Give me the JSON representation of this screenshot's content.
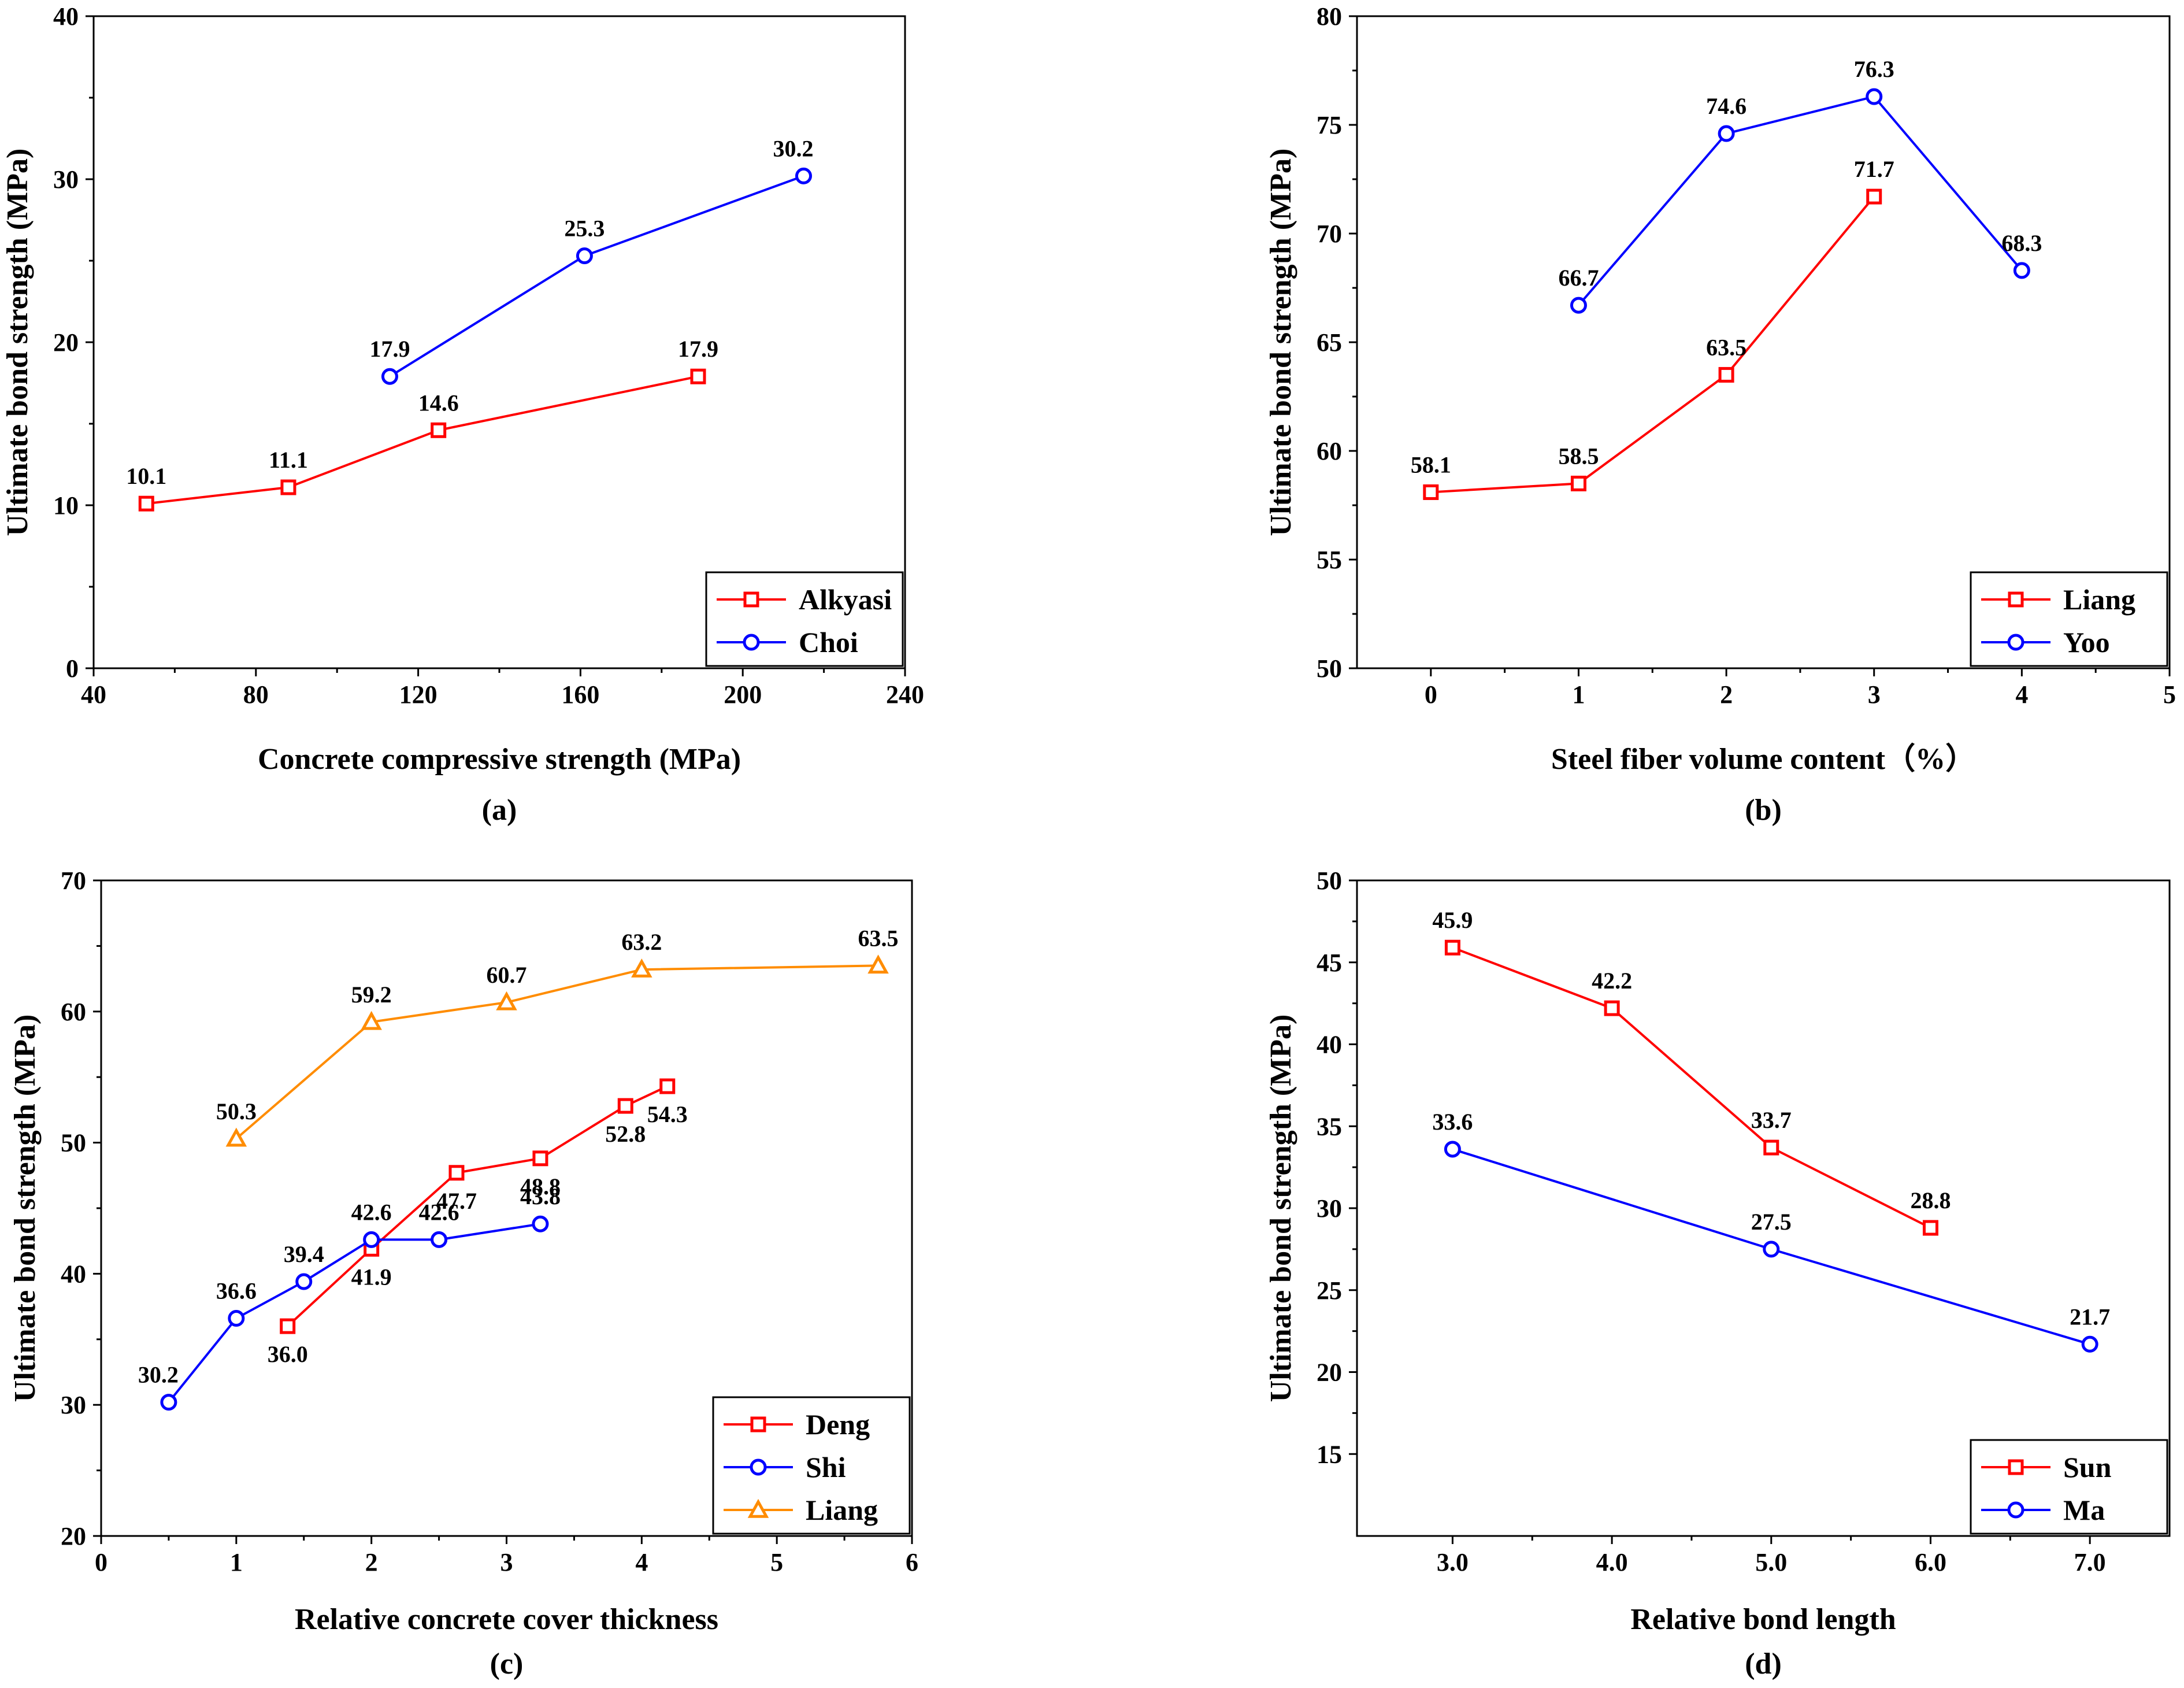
{
  "chart_data": [
    {
      "id": "a",
      "type": "line",
      "caption": "(a)",
      "xlabel": "Concrete compressive strength (MPa)",
      "ylabel": "Ultimate bond strength (MPa)",
      "xlim": [
        40,
        240
      ],
      "ylim": [
        0,
        40
      ],
      "xticks": [
        40,
        80,
        120,
        160,
        200,
        240
      ],
      "xtick_labels": [
        "40",
        "80",
        "120",
        "160",
        "200",
        "240"
      ],
      "yticks": [
        0,
        10,
        20,
        30,
        40
      ],
      "ytick_labels": [
        "0",
        "10",
        "20",
        "30",
        "40"
      ],
      "grid": false,
      "legend_position": "bottom-right",
      "series": [
        {
          "name": "Alkyasi",
          "color": "#ff0000",
          "marker": "square",
          "x": [
            53,
            88,
            125,
            189
          ],
          "y": [
            10.1,
            11.1,
            14.6,
            17.9
          ],
          "labels": [
            "10.1",
            "11.1",
            "14.6",
            "17.9"
          ],
          "label_pos": [
            "above",
            "above",
            "above",
            "above"
          ]
        },
        {
          "name": "Choi",
          "color": "#0000ff",
          "marker": "circle",
          "x": [
            113,
            161,
            215
          ],
          "y": [
            17.9,
            25.3,
            30.2
          ],
          "labels": [
            "17.9",
            "25.3",
            "30.2"
          ],
          "label_pos": [
            "above",
            "above",
            "above-left"
          ]
        }
      ]
    },
    {
      "id": "b",
      "type": "line",
      "caption": "(b)",
      "xlabel": "Steel fiber volume content（%）",
      "ylabel": "Ultimate bond strength (MPa)",
      "xlim": [
        -0.5,
        5
      ],
      "ylim": [
        50,
        80
      ],
      "xticks": [
        0,
        1,
        2,
        3,
        4,
        5
      ],
      "xtick_labels": [
        "0",
        "1",
        "2",
        "3",
        "4",
        "5"
      ],
      "yticks": [
        50,
        55,
        60,
        65,
        70,
        75,
        80
      ],
      "ytick_labels": [
        "50",
        "55",
        "60",
        "65",
        "70",
        "75",
        "80"
      ],
      "grid": false,
      "legend_position": "bottom-right",
      "series": [
        {
          "name": "Liang",
          "color": "#ff0000",
          "marker": "square",
          "x": [
            0,
            1,
            2,
            3
          ],
          "y": [
            58.1,
            58.5,
            63.5,
            71.7
          ],
          "labels": [
            "58.1",
            "58.5",
            "63.5",
            "71.7"
          ],
          "label_pos": [
            "above",
            "above",
            "above",
            "above"
          ]
        },
        {
          "name": "Yoo",
          "color": "#0000ff",
          "marker": "circle",
          "x": [
            1,
            2,
            3,
            4
          ],
          "y": [
            66.7,
            74.6,
            76.3,
            68.3
          ],
          "labels": [
            "66.7",
            "74.6",
            "76.3",
            "68.3"
          ],
          "label_pos": [
            "above",
            "above",
            "above",
            "above"
          ]
        }
      ]
    },
    {
      "id": "c",
      "type": "line",
      "caption": "(c)",
      "xlabel": "Relative concrete cover thickness",
      "ylabel": "Ultimate bond strength (MPa)",
      "xlim": [
        0,
        6
      ],
      "ylim": [
        20,
        70
      ],
      "xticks": [
        0,
        1,
        2,
        3,
        4,
        5,
        6
      ],
      "xtick_labels": [
        "0",
        "1",
        "2",
        "3",
        "4",
        "5",
        "6"
      ],
      "yticks": [
        20,
        30,
        40,
        50,
        60,
        70
      ],
      "ytick_labels": [
        "20",
        "30",
        "40",
        "50",
        "60",
        "70"
      ],
      "grid": false,
      "legend_position": "bottom-right",
      "series": [
        {
          "name": "Deng",
          "color": "#ff0000",
          "marker": "square",
          "x": [
            1.38,
            2.0,
            2.63,
            3.25,
            3.88,
            4.19
          ],
          "y": [
            36.0,
            41.9,
            47.7,
            48.8,
            52.8,
            54.3
          ],
          "labels": [
            "36.0",
            "41.9",
            "47.7",
            "48.8",
            "52.8",
            "54.3"
          ],
          "label_pos": [
            "below",
            "below",
            "below",
            "below",
            "below",
            "below"
          ]
        },
        {
          "name": "Shi",
          "color": "#0000ff",
          "marker": "circle",
          "x": [
            0.5,
            1.0,
            1.5,
            2.0,
            2.5,
            3.25
          ],
          "y": [
            30.2,
            36.6,
            39.4,
            42.6,
            42.6,
            43.8
          ],
          "labels": [
            "30.2",
            "36.6",
            "39.4",
            "42.6",
            "42.6",
            "43.8"
          ],
          "label_pos": [
            "above-left",
            "above",
            "above",
            "above",
            "above",
            "above"
          ]
        },
        {
          "name": "Liang",
          "color": "#ff8c00",
          "marker": "triangle",
          "x": [
            1.0,
            2.0,
            3.0,
            4.0,
            5.75
          ],
          "y": [
            50.3,
            59.2,
            60.7,
            63.2,
            63.5
          ],
          "labels": [
            "50.3",
            "59.2",
            "60.7",
            "63.2",
            "63.5"
          ],
          "label_pos": [
            "above",
            "above",
            "above",
            "above",
            "above"
          ]
        }
      ]
    },
    {
      "id": "d",
      "type": "line",
      "caption": "(d)",
      "xlabel": "Relative bond length",
      "ylabel": "Ultimate bond strength (MPa)",
      "xlim": [
        2.4,
        7.5
      ],
      "ylim": [
        10,
        50
      ],
      "xticks": [
        3,
        4,
        5,
        6,
        7
      ],
      "xtick_labels": [
        "3.0",
        "4.0",
        "5.0",
        "6.0",
        "7.0"
      ],
      "yticks": [
        15,
        20,
        25,
        30,
        35,
        40,
        45,
        50
      ],
      "ytick_labels": [
        "15",
        "20",
        "25",
        "30",
        "35",
        "40",
        "45",
        "50"
      ],
      "grid": false,
      "legend_position": "bottom-right",
      "series": [
        {
          "name": "Sun",
          "color": "#ff0000",
          "marker": "square",
          "x": [
            3,
            4,
            5,
            6
          ],
          "y": [
            45.9,
            42.2,
            33.7,
            28.8
          ],
          "labels": [
            "45.9",
            "42.2",
            "33.7",
            "28.8"
          ],
          "label_pos": [
            "above",
            "above",
            "above",
            "above"
          ]
        },
        {
          "name": "Ma",
          "color": "#0000ff",
          "marker": "circle",
          "x": [
            3,
            5,
            7
          ],
          "y": [
            33.6,
            27.5,
            21.7
          ],
          "labels": [
            "33.6",
            "27.5",
            "21.7"
          ],
          "label_pos": [
            "above",
            "above",
            "above"
          ]
        }
      ]
    }
  ]
}
